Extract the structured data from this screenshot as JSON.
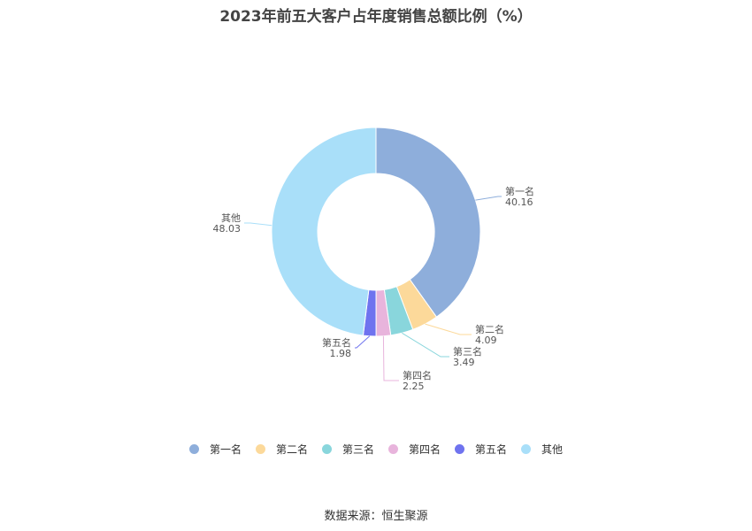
{
  "title": "2023年前五大客户占年度销售总额比例（%）",
  "source": "数据来源：恒生聚源",
  "chart_data": {
    "type": "pie",
    "donut": true,
    "title": "2023年前五大客户占年度销售总额比例（%）",
    "legend_position": "bottom",
    "series": [
      {
        "name": "第一名",
        "value": 40.16,
        "label": "40.16",
        "color": "#8eaedb"
      },
      {
        "name": "第二名",
        "value": 4.09,
        "label": "4.09",
        "color": "#fcd99a"
      },
      {
        "name": "第三名",
        "value": 3.49,
        "label": "3.49",
        "color": "#89d6dc"
      },
      {
        "name": "第四名",
        "value": 2.25,
        "label": "2.25",
        "color": "#e8b4dc"
      },
      {
        "name": "第五名",
        "value": 1.98,
        "label": "1.98",
        "color": "#6f73ef"
      },
      {
        "name": "其他",
        "value": 48.03,
        "label": "48.03",
        "color": "#a9dff9"
      }
    ]
  }
}
